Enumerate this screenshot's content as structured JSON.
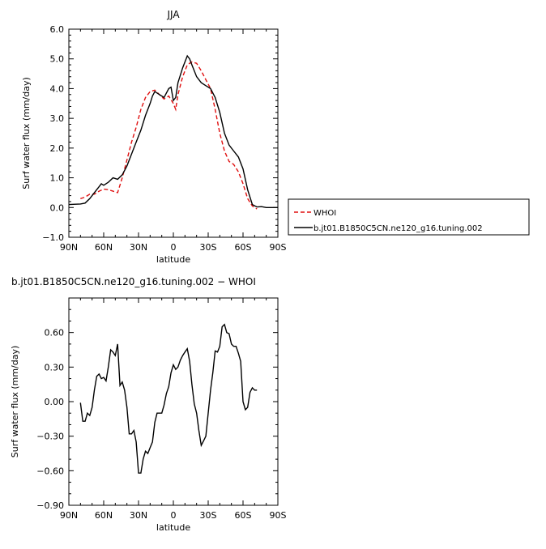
{
  "chart_data": [
    {
      "type": "line",
      "title": "JJA",
      "xlabel": "latitude",
      "ylabel": "Surf water flux (mm/day)",
      "xlim": [
        90,
        -90
      ],
      "ylim": [
        -1.0,
        6.0
      ],
      "x_ticks": [
        90,
        60,
        30,
        0,
        -30,
        -60,
        -90
      ],
      "x_tick_labels": [
        "90N",
        "60N",
        "30N",
        "0",
        "30S",
        "60S",
        "90S"
      ],
      "y_ticks": [
        -1.0,
        0.0,
        1.0,
        2.0,
        3.0,
        4.0,
        5.0,
        6.0
      ],
      "y_tick_labels": [
        "−1.0",
        "0.0",
        "1.0",
        "2.0",
        "3.0",
        "4.0",
        "5.0",
        "6.0"
      ],
      "legend_position": "right",
      "series": [
        {
          "name": "WHOI",
          "color": "#e01010",
          "style": "dashed",
          "x": [
            80,
            76,
            72,
            68,
            64,
            60,
            56,
            52,
            48,
            44,
            40,
            36,
            32,
            28,
            24,
            20,
            16,
            12,
            8,
            4,
            0,
            -2,
            -4,
            -8,
            -12,
            -16,
            -20,
            -24,
            -28,
            -32,
            -36,
            -40,
            -44,
            -48,
            -52,
            -56,
            -60,
            -64,
            -68,
            -72
          ],
          "y": [
            0.3,
            0.35,
            0.45,
            0.45,
            0.55,
            0.62,
            0.6,
            0.55,
            0.5,
            1.0,
            1.6,
            2.2,
            2.7,
            3.3,
            3.7,
            3.9,
            3.95,
            3.8,
            3.65,
            3.75,
            3.5,
            3.3,
            3.8,
            4.4,
            4.8,
            4.9,
            4.85,
            4.6,
            4.3,
            4.0,
            3.3,
            2.5,
            1.9,
            1.55,
            1.45,
            1.2,
            0.8,
            0.3,
            0.05,
            -0.05
          ]
        },
        {
          "name": "b.jt01.B1850C5CN.ne120_g16.tuning.002",
          "color": "#000000",
          "style": "solid",
          "x": [
            90,
            80,
            76,
            72,
            68,
            64,
            62,
            60,
            56,
            52,
            48,
            44,
            40,
            36,
            32,
            28,
            24,
            20,
            18,
            16,
            12,
            8,
            4,
            2,
            0,
            -2,
            -4,
            -8,
            -12,
            -14,
            -16,
            -20,
            -24,
            -28,
            -32,
            -36,
            -40,
            -44,
            -48,
            -52,
            -56,
            -60,
            -64,
            -68,
            -72,
            -76,
            -80,
            -90
          ],
          "y": [
            0.1,
            0.12,
            0.15,
            0.3,
            0.5,
            0.7,
            0.8,
            0.75,
            0.85,
            1.0,
            0.95,
            1.1,
            1.4,
            1.8,
            2.2,
            2.6,
            3.1,
            3.5,
            3.75,
            3.9,
            3.8,
            3.7,
            4.0,
            4.05,
            3.6,
            3.7,
            4.2,
            4.7,
            5.1,
            5.0,
            4.8,
            4.4,
            4.2,
            4.1,
            4.0,
            3.7,
            3.2,
            2.5,
            2.1,
            1.9,
            1.7,
            1.3,
            0.6,
            0.1,
            0.02,
            0.03,
            0.0,
            0.0
          ]
        }
      ]
    },
    {
      "type": "line",
      "title": "b.jt01.B1850C5CN.ne120_g16.tuning.002 − WHOI",
      "xlabel": "latitude",
      "ylabel": "Surf water flux (mm/day)",
      "xlim": [
        90,
        -90
      ],
      "ylim": [
        -0.9,
        0.9
      ],
      "x_ticks": [
        90,
        60,
        30,
        0,
        -30,
        -60,
        -90
      ],
      "x_tick_labels": [
        "90N",
        "60N",
        "30N",
        "0",
        "30S",
        "60S",
        "90S"
      ],
      "y_ticks": [
        -0.9,
        -0.6,
        -0.3,
        0.0,
        0.3,
        0.6
      ],
      "y_tick_labels": [
        "−0.90",
        "−0.60",
        "−0.30",
        "0.00",
        "0.30",
        "0.60"
      ],
      "series": [
        {
          "color": "#000000",
          "style": "solid",
          "x": [
            80,
            78,
            76,
            74,
            72,
            70,
            68,
            66,
            64,
            62,
            60,
            58,
            56,
            54,
            52,
            50,
            48,
            46,
            44,
            42,
            40,
            38,
            36,
            34,
            32,
            30,
            28,
            26,
            24,
            22,
            20,
            18,
            16,
            14,
            12,
            10,
            8,
            6,
            4,
            2,
            0,
            -2,
            -4,
            -6,
            -8,
            -10,
            -12,
            -14,
            -16,
            -18,
            -20,
            -22,
            -24,
            -26,
            -28,
            -30,
            -32,
            -34,
            -36,
            -38,
            -40,
            -42,
            -44,
            -46,
            -48,
            -50,
            -52,
            -54,
            -56,
            -58,
            -60,
            -62,
            -64,
            -66,
            -68,
            -70,
            -72
          ],
          "y": [
            -0.01,
            -0.17,
            -0.17,
            -0.1,
            -0.12,
            -0.05,
            0.1,
            0.22,
            0.24,
            0.2,
            0.21,
            0.18,
            0.3,
            0.45,
            0.43,
            0.4,
            0.5,
            0.14,
            0.17,
            0.1,
            -0.05,
            -0.28,
            -0.28,
            -0.25,
            -0.35,
            -0.62,
            -0.62,
            -0.5,
            -0.43,
            -0.45,
            -0.4,
            -0.35,
            -0.18,
            -0.1,
            -0.1,
            -0.1,
            -0.03,
            0.07,
            0.13,
            0.25,
            0.32,
            0.28,
            0.3,
            0.36,
            0.4,
            0.43,
            0.46,
            0.35,
            0.15,
            -0.02,
            -0.1,
            -0.25,
            -0.38,
            -0.34,
            -0.3,
            -0.1,
            0.1,
            0.25,
            0.44,
            0.43,
            0.48,
            0.65,
            0.67,
            0.6,
            0.59,
            0.5,
            0.48,
            0.48,
            0.42,
            0.35,
            0.0,
            -0.07,
            -0.05,
            0.08,
            0.12,
            0.1,
            0.1
          ]
        }
      ]
    }
  ]
}
